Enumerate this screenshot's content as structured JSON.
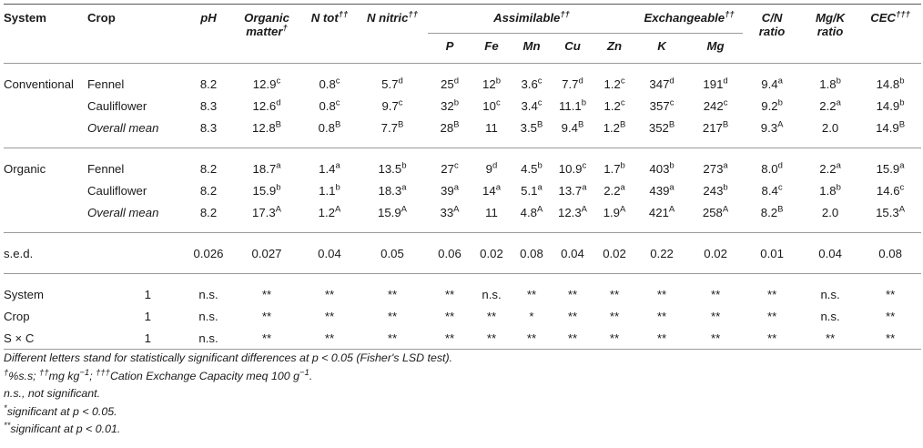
{
  "headers": {
    "system": "System",
    "crop": "Crop",
    "ph": "pH",
    "organic_matter_l1": "Organic",
    "organic_matter_l2": "matter",
    "organic_matter_sup": "†",
    "n_tot": "N tot",
    "n_tot_sup": "††",
    "n_nitric": "N nitric",
    "n_nitric_sup": "††",
    "assimilable": "Assimilable",
    "assimilable_sup": "††",
    "exchangeable": "Exchangeable",
    "exchangeable_sup": "††",
    "cn_l1": "C/N",
    "cn_l2": "ratio",
    "mgk_l1": "Mg/K",
    "mgk_l2": "ratio",
    "cec": "CEC",
    "cec_sup": "†††",
    "p": "P",
    "fe": "Fe",
    "mn": "Mn",
    "cu": "Cu",
    "zn": "Zn",
    "k": "K",
    "mg": "Mg"
  },
  "rows": [
    {
      "system": "Conventional",
      "crop": "Fennel",
      "crop_italic": false,
      "cells": [
        [
          "8.2",
          ""
        ],
        [
          "12.9",
          "c"
        ],
        [
          "0.8",
          "c"
        ],
        [
          "5.7",
          "d"
        ],
        [
          "25",
          "d"
        ],
        [
          "12",
          "b"
        ],
        [
          "3.6",
          "c"
        ],
        [
          "7.7",
          "d"
        ],
        [
          "1.2",
          "c"
        ],
        [
          "347",
          "d"
        ],
        [
          "191",
          "d"
        ],
        [
          "9.4",
          "a"
        ],
        [
          "1.8",
          "b"
        ],
        [
          "14.8",
          "b"
        ]
      ]
    },
    {
      "system": "",
      "crop": "Cauliflower",
      "crop_italic": false,
      "cells": [
        [
          "8.3",
          ""
        ],
        [
          "12.6",
          "d"
        ],
        [
          "0.8",
          "c"
        ],
        [
          "9.7",
          "c"
        ],
        [
          "32",
          "b"
        ],
        [
          "10",
          "c"
        ],
        [
          "3.4",
          "c"
        ],
        [
          "11.1",
          "b"
        ],
        [
          "1.2",
          "c"
        ],
        [
          "357",
          "c"
        ],
        [
          "242",
          "c"
        ],
        [
          "9.2",
          "b"
        ],
        [
          "2.2",
          "a"
        ],
        [
          "14.9",
          "b"
        ]
      ]
    },
    {
      "system": "",
      "crop": "Overall mean",
      "crop_italic": true,
      "cells": [
        [
          "8.3",
          ""
        ],
        [
          "12.8",
          "B"
        ],
        [
          "0.8",
          "B"
        ],
        [
          "7.7",
          "B"
        ],
        [
          "28",
          "B"
        ],
        [
          "11",
          ""
        ],
        [
          "3.5",
          "B"
        ],
        [
          "9.4",
          "B"
        ],
        [
          "1.2",
          "B"
        ],
        [
          "352",
          "B"
        ],
        [
          "217",
          "B"
        ],
        [
          "9.3",
          "A"
        ],
        [
          "2.0",
          ""
        ],
        [
          "14.9",
          "B"
        ]
      ]
    },
    {
      "system": "Organic",
      "crop": "Fennel",
      "crop_italic": false,
      "cells": [
        [
          "8.2",
          ""
        ],
        [
          "18.7",
          "a"
        ],
        [
          "1.4",
          "a"
        ],
        [
          "13.5",
          "b"
        ],
        [
          "27",
          "c"
        ],
        [
          "9",
          "d"
        ],
        [
          "4.5",
          "b"
        ],
        [
          "10.9",
          "c"
        ],
        [
          "1.7",
          "b"
        ],
        [
          "403",
          "b"
        ],
        [
          "273",
          "a"
        ],
        [
          "8.0",
          "d"
        ],
        [
          "2.2",
          "a"
        ],
        [
          "15.9",
          "a"
        ]
      ]
    },
    {
      "system": "",
      "crop": "Cauliflower",
      "crop_italic": false,
      "cells": [
        [
          "8.2",
          ""
        ],
        [
          "15.9",
          "b"
        ],
        [
          "1.1",
          "b"
        ],
        [
          "18.3",
          "a"
        ],
        [
          "39",
          "a"
        ],
        [
          "14",
          "a"
        ],
        [
          "5.1",
          "a"
        ],
        [
          "13.7",
          "a"
        ],
        [
          "2.2",
          "a"
        ],
        [
          "439",
          "a"
        ],
        [
          "243",
          "b"
        ],
        [
          "8.4",
          "c"
        ],
        [
          "1.8",
          "b"
        ],
        [
          "14.6",
          "c"
        ]
      ]
    },
    {
      "system": "",
      "crop": "Overall mean",
      "crop_italic": true,
      "cells": [
        [
          "8.2",
          ""
        ],
        [
          "17.3",
          "A"
        ],
        [
          "1.2",
          "A"
        ],
        [
          "15.9",
          "A"
        ],
        [
          "33",
          "A"
        ],
        [
          "11",
          ""
        ],
        [
          "4.8",
          "A"
        ],
        [
          "12.3",
          "A"
        ],
        [
          "1.9",
          "A"
        ],
        [
          "421",
          "A"
        ],
        [
          "258",
          "A"
        ],
        [
          "8.2",
          "B"
        ],
        [
          "2.0",
          ""
        ],
        [
          "15.3",
          "A"
        ]
      ]
    }
  ],
  "sed": {
    "label": "s.e.d.",
    "values": [
      "0.026",
      "0.027",
      "0.04",
      "0.05",
      "0.06",
      "0.02",
      "0.08",
      "0.04",
      "0.02",
      "0.22",
      "0.02",
      "0.01",
      "0.04",
      "0.08"
    ]
  },
  "anova": [
    {
      "label": "System",
      "df": "1",
      "values": [
        "n.s.",
        "**",
        "**",
        "**",
        "**",
        "n.s.",
        "**",
        "**",
        "**",
        "**",
        "**",
        "**",
        "n.s.",
        "**"
      ]
    },
    {
      "label": "Crop",
      "df": "1",
      "values": [
        "n.s.",
        "**",
        "**",
        "**",
        "**",
        "**",
        "*",
        "**",
        "**",
        "**",
        "**",
        "**",
        "n.s.",
        "**"
      ]
    },
    {
      "label": "S × C",
      "df": "1",
      "values": [
        "n.s.",
        "**",
        "**",
        "**",
        "**",
        "**",
        "**",
        "**",
        "**",
        "**",
        "**",
        "**",
        "**",
        "**"
      ]
    }
  ],
  "notes": {
    "line1": "Different letters stand for statistically significant differences at p < 0.05 (Fisher's LSD test).",
    "line2_sup1": "†",
    "line2_a": "%s.s; ",
    "line2_sup2": "††",
    "line2_b": "mg kg",
    "line2_sup3": "−1",
    "line2_c": "; ",
    "line2_sup4": "†††",
    "line2_d": "Cation Exchange Capacity meq 100 g",
    "line2_sup5": "−1",
    "line2_e": ".",
    "line3": "n.s., not significant.",
    "line4_sup": "*",
    "line4": "significant at p < 0.05.",
    "line5_sup": "**",
    "line5": "significant at p < 0.01."
  }
}
